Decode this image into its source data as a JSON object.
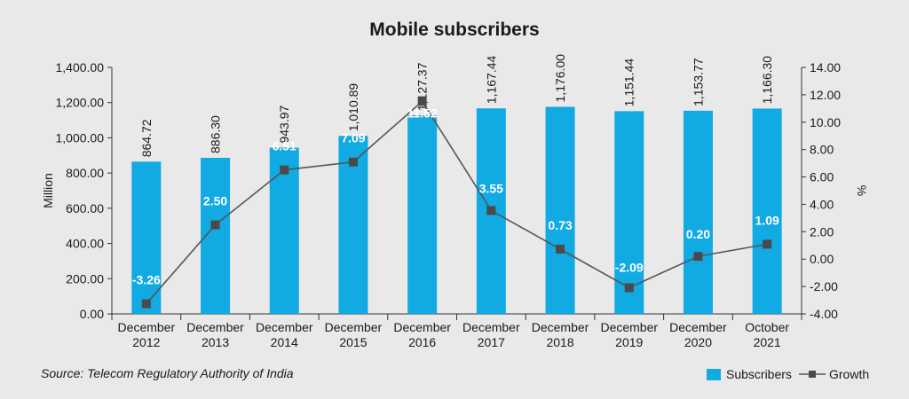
{
  "chart_data": {
    "type": "bar",
    "title": "Mobile subscribers",
    "ylabel": "Million",
    "y2label": "%",
    "categories": [
      [
        "December",
        "2012"
      ],
      [
        "December",
        "2013"
      ],
      [
        "December",
        "2014"
      ],
      [
        "December",
        "2015"
      ],
      [
        "December",
        "2016"
      ],
      [
        "December",
        "2017"
      ],
      [
        "December",
        "2018"
      ],
      [
        "December",
        "2019"
      ],
      [
        "December",
        "2020"
      ],
      [
        "October",
        "2021"
      ]
    ],
    "series": [
      {
        "name": "Subscribers",
        "type": "bar",
        "axis": "left",
        "values": [
          864.72,
          886.3,
          943.97,
          1010.89,
          1127.37,
          1167.44,
          1176.0,
          1151.44,
          1153.77,
          1166.3
        ],
        "labels": [
          "864.72",
          "886.30",
          "943.97",
          "1,010.89",
          "1,127.37",
          "1,167.44",
          "1,176.00",
          "1,151.44",
          "1,153.77",
          "1,166.30"
        ],
        "color": "#12aae2"
      },
      {
        "name": "Growth",
        "type": "line",
        "axis": "right",
        "values": [
          -3.26,
          2.5,
          6.51,
          7.09,
          11.52,
          3.55,
          0.73,
          -2.09,
          0.2,
          1.09
        ],
        "labels": [
          "-3.26",
          "2.50",
          "6.51",
          "7.09",
          "11.52",
          "3.55",
          "0.73",
          "-2.09",
          "0.20",
          "1.09"
        ],
        "color": "#555555"
      }
    ],
    "ylim": [
      0,
      1400
    ],
    "yticks": [
      "1,400.00",
      "1,200.00",
      "1,000.00",
      "800.00",
      "600.00",
      "400.00",
      "200.00",
      "0.00"
    ],
    "y2lim": [
      -4,
      14
    ],
    "y2ticks": [
      "14.00",
      "12.00",
      "10.00",
      "8.00",
      "6.00",
      "4.00",
      "2.00",
      "0.00",
      "-2.00",
      "-4.00"
    ],
    "grid": false,
    "legend": "bottom-right",
    "source": "Source: Telecom Regulatory Authority of India",
    "colors": {
      "background": "#e9e9ea",
      "bar": "#12aae2",
      "line": "#555555",
      "marker": "#4a4a4a"
    }
  }
}
